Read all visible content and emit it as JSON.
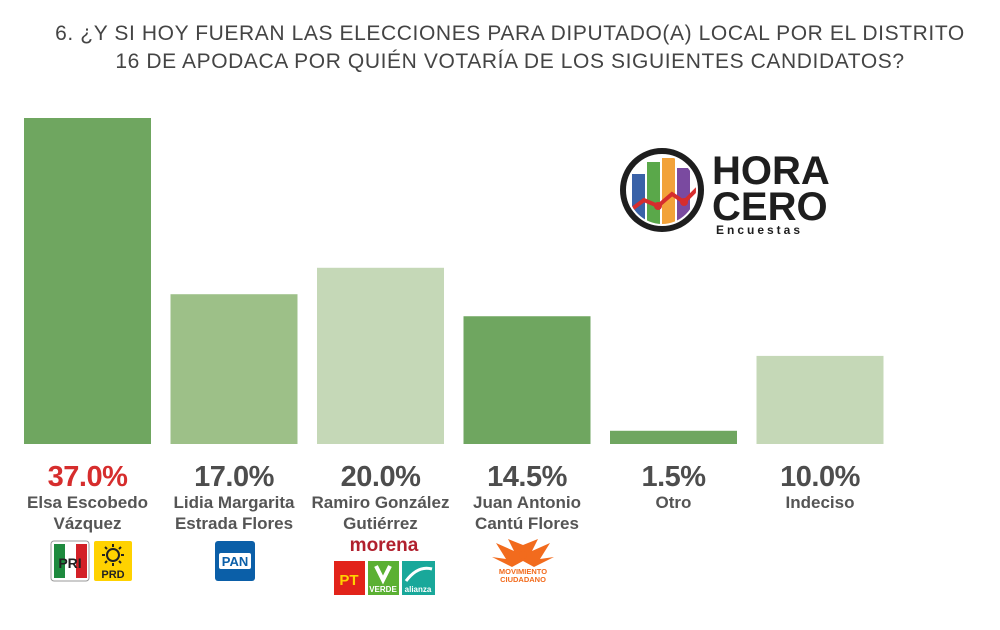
{
  "title": "6. ¿Y SI HOY FUERAN LAS ELECCIONES PARA DIPUTADO(A) LOCAL POR EL DISTRITO 16 DE APODACA POR QUIÉN VOTARÍA DE LOS SIGUIENTES CANDIDATOS?",
  "logo": {
    "line1": "HORA",
    "line2": "CERO",
    "line3": "Encuestas"
  },
  "chart_data": {
    "type": "bar",
    "title": "6. ¿Y SI HOY FUERAN LAS ELECCIONES PARA DIPUTADO(A) LOCAL POR EL DISTRITO 16 DE APODACA POR QUIÉN VOTARÍA DE LOS SIGUIENTES CANDIDATOS?",
    "ylim": [
      0,
      37
    ],
    "grid": false,
    "legend": "none",
    "categories": [
      [
        "Elsa Escobedo",
        "Vázquez"
      ],
      [
        "Lidia Margarita",
        "Estrada Flores"
      ],
      [
        "Ramiro González",
        "Gutiérrez"
      ],
      [
        "Juan Antonio",
        "Cantú Flores"
      ],
      [
        "Otro"
      ],
      [
        "Indeciso"
      ]
    ],
    "values": [
      37.0,
      17.0,
      20.0,
      14.5,
      1.5,
      10.0
    ],
    "value_labels": [
      "37.0%",
      "17.0%",
      "20.0%",
      "14.5%",
      "1.5%",
      "10.0%"
    ],
    "bar_colors": [
      "#6fa660",
      "#9dc088",
      "#c5d8b7",
      "#6fa660",
      "#6fa660",
      "#c5d8b7"
    ],
    "label_colors": [
      "#d62d2d",
      "#4d4d4d",
      "#4d4d4d",
      "#4d4d4d",
      "#4d4d4d",
      "#4d4d4d"
    ]
  },
  "parties": {
    "pri": "PRI",
    "prd": "PRD",
    "pan": "PAN",
    "morena": "morena",
    "pt": "PT",
    "verde": "VERDE",
    "alianza": "alianza",
    "mc_line1": "MOVIMIENTO",
    "mc_line2": "CIUDADANO"
  },
  "colors": {
    "pri_green": "#1e8a3e",
    "pri_red": "#d32027",
    "prd_yellow": "#ffd200",
    "pan_blue": "#0b5fa8",
    "morena": "#b1202e",
    "pt_red": "#e2231a",
    "verde_green": "#5bb033",
    "alianza_teal": "#19a89a",
    "mc_orange": "#f26b1d"
  }
}
